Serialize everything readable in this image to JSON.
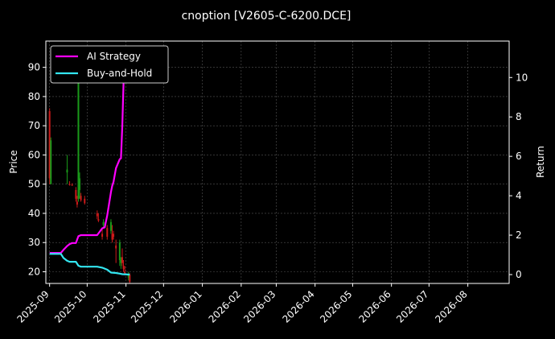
{
  "chart_data": {
    "type": "line",
    "title": "cnoption [V2605-C-6200.DCE]",
    "xlabel": "",
    "ylabel": "Price",
    "y2label": "Return",
    "grid": true,
    "legend_position": "top-left",
    "xlim": [
      "2025-08-29",
      "2026-09-03"
    ],
    "ylim": [
      16,
      99
    ],
    "y2lim": [
      -0.45,
      11.85
    ],
    "x_ticks": [
      "2025-09",
      "2025-10",
      "2025-11",
      "2025-12",
      "2026-01",
      "2026-02",
      "2026-03",
      "2026-04",
      "2026-05",
      "2026-06",
      "2026-07",
      "2026-08"
    ],
    "y_ticks": [
      20,
      30,
      40,
      50,
      60,
      70,
      80,
      90
    ],
    "y2_ticks": [
      0,
      2,
      4,
      6,
      8,
      10
    ],
    "colors": {
      "up": "#1a9a1a",
      "down": "#cc1a1a",
      "strategy": "#ff00ff",
      "buyhold": "#33e6f0"
    },
    "candles": [
      {
        "date": "2025-09-01",
        "open": 75,
        "high": 76,
        "low": 50,
        "close": 52
      },
      {
        "date": "2025-09-02",
        "open": 50,
        "high": 66,
        "low": 50,
        "close": 65
      },
      {
        "date": "2025-09-15",
        "open": 54,
        "high": 60,
        "low": 50,
        "close": 55
      },
      {
        "date": "2025-09-17",
        "open": 50,
        "high": 51,
        "low": 49.5,
        "close": 49.7
      },
      {
        "date": "2025-09-19",
        "open": 49.8,
        "high": 50.3,
        "low": 49.4,
        "close": 49.6
      },
      {
        "date": "2025-09-22",
        "open": 48,
        "high": 49,
        "low": 44,
        "close": 45
      },
      {
        "date": "2025-09-23",
        "open": 44,
        "high": 46,
        "low": 42,
        "close": 43
      },
      {
        "date": "2025-09-24",
        "open": 45,
        "high": 88,
        "low": 44,
        "close": 85
      },
      {
        "date": "2025-09-25",
        "open": 48,
        "high": 54,
        "low": 45,
        "close": 52
      },
      {
        "date": "2025-09-26",
        "open": 46,
        "high": 47,
        "low": 44,
        "close": 44.5
      },
      {
        "date": "2025-09-29",
        "open": 45,
        "high": 46,
        "low": 43,
        "close": 43.5
      },
      {
        "date": "2025-10-09",
        "open": 40,
        "high": 41,
        "low": 38,
        "close": 39
      },
      {
        "date": "2025-10-10",
        "open": 38,
        "high": 40,
        "low": 37,
        "close": 37.5
      },
      {
        "date": "2025-10-13",
        "open": 33,
        "high": 35,
        "low": 31,
        "close": 32
      },
      {
        "date": "2025-10-14",
        "open": 36,
        "high": 38,
        "low": 35,
        "close": 37
      },
      {
        "date": "2025-10-17",
        "open": 35,
        "high": 36,
        "low": 31,
        "close": 32
      },
      {
        "date": "2025-10-20",
        "open": 34,
        "high": 38,
        "low": 33,
        "close": 37
      },
      {
        "date": "2025-10-21",
        "open": 33,
        "high": 36,
        "low": 30,
        "close": 31
      },
      {
        "date": "2025-10-22",
        "open": 33,
        "high": 34,
        "low": 31,
        "close": 32
      },
      {
        "date": "2025-10-24",
        "open": 29,
        "high": 31,
        "low": 23,
        "close": 28
      },
      {
        "date": "2025-10-27",
        "open": 24,
        "high": 31,
        "low": 22,
        "close": 30
      },
      {
        "date": "2025-10-28",
        "open": 23,
        "high": 25,
        "low": 21,
        "close": 24
      },
      {
        "date": "2025-10-29",
        "open": 25,
        "high": 28,
        "low": 22,
        "close": 23
      },
      {
        "date": "2025-10-30",
        "open": 22,
        "high": 24,
        "low": 20,
        "close": 21
      },
      {
        "date": "2025-10-31",
        "open": 20,
        "high": 22,
        "low": 19,
        "close": 19.5
      },
      {
        "date": "2025-11-03",
        "open": 18,
        "high": 20,
        "low": 17,
        "close": 19
      },
      {
        "date": "2025-11-04",
        "open": 19,
        "high": 19.5,
        "low": 16,
        "close": 16.5
      }
    ],
    "series": [
      {
        "name": "AI Strategy",
        "axis": "right",
        "points": [
          [
            "2025-09-01",
            1.1
          ],
          [
            "2025-09-05",
            1.1
          ],
          [
            "2025-09-08",
            1.1
          ],
          [
            "2025-09-10",
            1.1
          ],
          [
            "2025-09-12",
            1.25
          ],
          [
            "2025-09-15",
            1.45
          ],
          [
            "2025-09-17",
            1.55
          ],
          [
            "2025-09-19",
            1.6
          ],
          [
            "2025-09-22",
            1.6
          ],
          [
            "2025-09-24",
            1.95
          ],
          [
            "2025-09-26",
            2.0
          ],
          [
            "2025-10-09",
            2.0
          ],
          [
            "2025-10-13",
            2.35
          ],
          [
            "2025-10-15",
            2.4
          ],
          [
            "2025-10-17",
            3.0
          ],
          [
            "2025-10-20",
            4.2
          ],
          [
            "2025-10-21",
            4.5
          ],
          [
            "2025-10-22",
            4.7
          ],
          [
            "2025-10-24",
            5.4
          ],
          [
            "2025-10-27",
            5.85
          ],
          [
            "2025-10-28",
            5.9
          ],
          [
            "2025-10-29",
            7.5
          ],
          [
            "2025-10-30",
            9.6
          ],
          [
            "2025-10-31",
            11.5
          ]
        ]
      },
      {
        "name": "Buy-and-Hold",
        "axis": "right",
        "points": [
          [
            "2025-09-01",
            1.05
          ],
          [
            "2025-09-10",
            1.05
          ],
          [
            "2025-09-12",
            0.85
          ],
          [
            "2025-09-15",
            0.7
          ],
          [
            "2025-09-17",
            0.65
          ],
          [
            "2025-09-22",
            0.65
          ],
          [
            "2025-09-24",
            0.45
          ],
          [
            "2025-09-26",
            0.4
          ],
          [
            "2025-10-09",
            0.4
          ],
          [
            "2025-10-13",
            0.35
          ],
          [
            "2025-10-17",
            0.25
          ],
          [
            "2025-10-20",
            0.1
          ],
          [
            "2025-10-24",
            0.08
          ],
          [
            "2025-10-27",
            0.05
          ],
          [
            "2025-10-29",
            0.02
          ],
          [
            "2025-11-04",
            0.0
          ]
        ]
      }
    ]
  }
}
